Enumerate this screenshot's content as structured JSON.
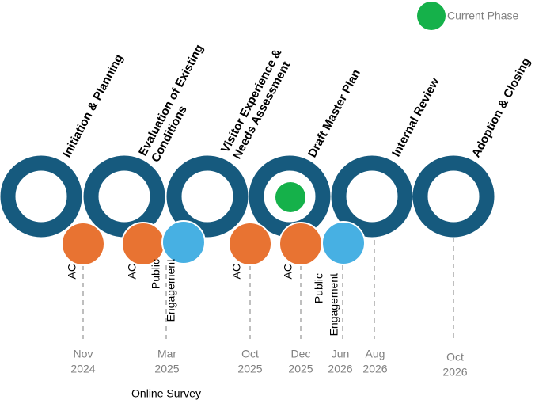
{
  "legend": {
    "label": "Current Phase"
  },
  "phases": [
    {
      "lines": [
        "Initiation & Planning"
      ]
    },
    {
      "lines": [
        "Evaluation of Existing",
        "Conditions"
      ]
    },
    {
      "lines": [
        "Visitor Experience &",
        "Needs Assessment"
      ]
    },
    {
      "lines": [
        "Draft Master Plan"
      ]
    },
    {
      "lines": [
        "Internal Review"
      ]
    },
    {
      "lines": [
        "Adoption & Closing"
      ]
    }
  ],
  "events": [
    {
      "lines": [
        "AC"
      ]
    },
    {
      "lines": [
        "AC"
      ]
    },
    {
      "lines": [
        "Public",
        "Engagement"
      ]
    },
    {
      "lines": [
        "AC"
      ]
    },
    {
      "lines": [
        "AC"
      ]
    },
    {
      "lines": [
        "Public",
        "Engagement"
      ]
    }
  ],
  "dates": [
    {
      "lines": [
        "Nov",
        "2024"
      ]
    },
    {
      "lines": [
        "Mar",
        "2025"
      ]
    },
    {
      "lines": [
        "Oct",
        "2025"
      ]
    },
    {
      "lines": [
        "Dec",
        "2025"
      ]
    },
    {
      "lines": [
        "Jun",
        "2026"
      ]
    },
    {
      "lines": [
        "Aug",
        "2026"
      ]
    },
    {
      "lines": [
        "Oct",
        "2026"
      ]
    }
  ],
  "note": "Online Survey"
}
